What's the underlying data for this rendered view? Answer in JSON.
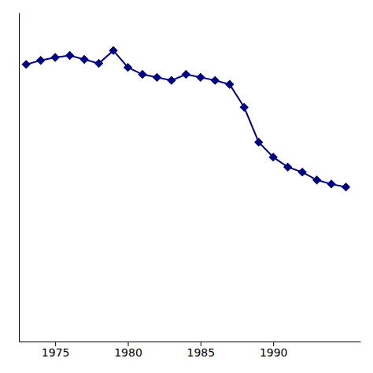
{
  "chart_data": {
    "type": "line",
    "x": [
      1973,
      1974,
      1975,
      1976,
      1977,
      1978,
      1979,
      1980,
      1981,
      1982,
      1983,
      1984,
      1985,
      1986,
      1987,
      1988,
      1989,
      1990,
      1991,
      1992,
      1993,
      1994,
      1995
    ],
    "values": [
      47.8,
      48.2,
      48.5,
      48.7,
      48.3,
      47.9,
      49.2,
      47.5,
      46.8,
      46.5,
      46.2,
      46.8,
      46.5,
      46.2,
      45.8,
      43.5,
      40.0,
      38.5,
      37.5,
      37.0,
      36.2,
      35.8,
      35.5
    ],
    "color": "#000080",
    "marker": "diamond",
    "xlim": [
      1972.5,
      1996.0
    ],
    "xticks": [
      1975,
      1980,
      1985,
      1990
    ],
    "ylim": [
      20,
      53
    ],
    "tick_labels": "x",
    "grid": false
  }
}
